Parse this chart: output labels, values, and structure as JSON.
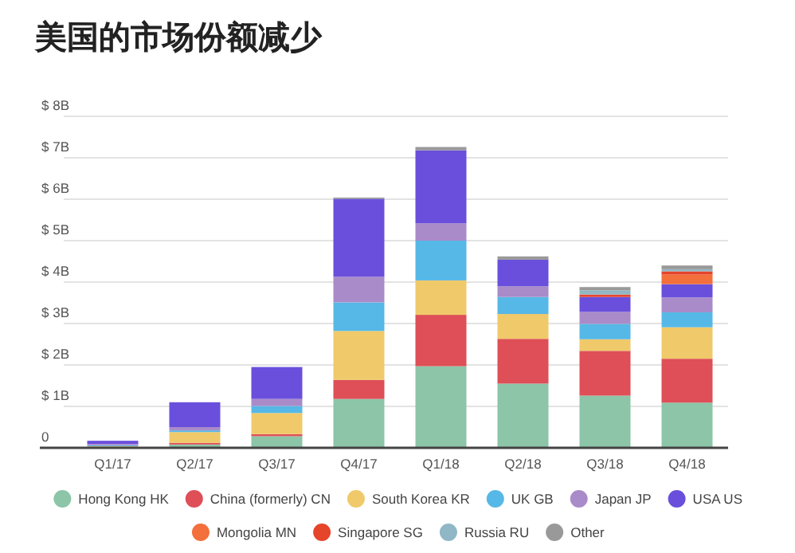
{
  "chart_data": {
    "type": "bar",
    "stacked": true,
    "title": "美国的市场份额减少",
    "categories": [
      "Q1/17",
      "Q2/17",
      "Q3/17",
      "Q4/17",
      "Q1/18",
      "Q2/18",
      "Q3/18",
      "Q4/18"
    ],
    "series": [
      {
        "name": "Hong Kong HK",
        "color": "#8cc5a8",
        "values": [
          null,
          0.08,
          0.28,
          1.18,
          1.97,
          1.55,
          1.26,
          1.09
        ]
      },
      {
        "name": "China (formerly) CN",
        "color": "#de4f57",
        "values": [
          0.01,
          0.04,
          0.05,
          0.46,
          1.24,
          1.08,
          1.08,
          1.06
        ]
      },
      {
        "name": "South Korea KR",
        "color": "#f0c96a",
        "values": [
          0.03,
          0.26,
          0.51,
          1.18,
          0.83,
          0.6,
          0.28,
          0.76
        ]
      },
      {
        "name": "UK GB",
        "color": "#56b8e6",
        "values": [
          0.02,
          0.04,
          0.17,
          0.69,
          0.96,
          0.41,
          0.37,
          0.36
        ]
      },
      {
        "name": "Japan JP",
        "color": "#a98bc9",
        "values": [
          0.03,
          0.08,
          0.17,
          0.62,
          0.42,
          0.26,
          0.29,
          0.36
        ]
      },
      {
        "name": "USA US",
        "color": "#6a4fdc",
        "values": [
          0.08,
          0.6,
          0.77,
          1.88,
          1.76,
          0.64,
          0.36,
          0.32
        ]
      },
      {
        "name": "Mongolia MN",
        "color": "#f36f3b",
        "values": [
          null,
          null,
          null,
          null,
          null,
          null,
          null,
          0.23
        ]
      },
      {
        "name": "Singapore SG",
        "color": "#e5452b",
        "values": [
          null,
          null,
          null,
          null,
          null,
          null,
          0.06,
          0.08
        ]
      },
      {
        "name": "Russia RU",
        "color": "#8fb7c6",
        "values": [
          null,
          null,
          null,
          null,
          null,
          null,
          0.1,
          0.05
        ]
      },
      {
        "name": "Other",
        "color": "#999999",
        "values": [
          null,
          null,
          null,
          0.03,
          0.08,
          0.08,
          0.08,
          0.09
        ]
      }
    ],
    "ylim": [
      0,
      8
    ],
    "yticks": [
      {
        "value": 0,
        "label": "0"
      },
      {
        "value": 1,
        "label": "$ 1B"
      },
      {
        "value": 2,
        "label": "$ 2B"
      },
      {
        "value": 3,
        "label": "$ 3B"
      },
      {
        "value": 4,
        "label": "$ 4B"
      },
      {
        "value": 5,
        "label": "$ 5B"
      },
      {
        "value": 6,
        "label": "$ 6B"
      },
      {
        "value": 7,
        "label": "$ 7B"
      },
      {
        "value": 8,
        "label": "$ 8B"
      }
    ],
    "grid": "y",
    "legend": "bottom"
  }
}
